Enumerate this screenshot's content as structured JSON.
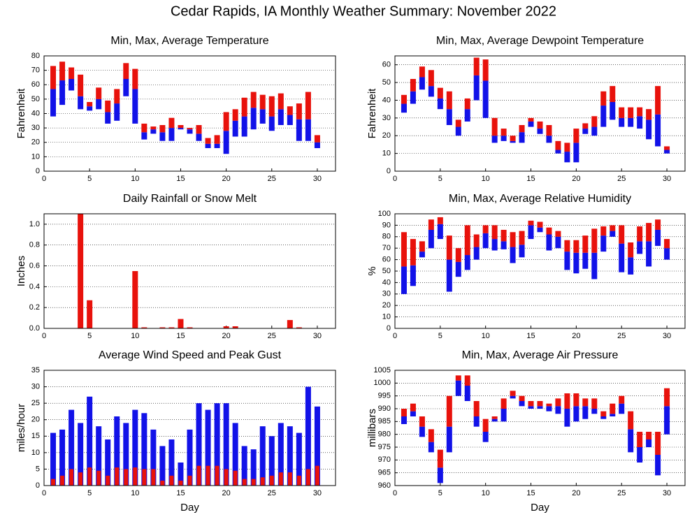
{
  "title": "Cedar Rapids, IA Monthly Weather Summary: November 2022",
  "chart_data": [
    {
      "type": "range_bar",
      "title": "Min, Max, Average Temperature",
      "ylabel": "Fahrenheit",
      "x": [
        1,
        2,
        3,
        4,
        5,
        6,
        7,
        8,
        9,
        10,
        11,
        12,
        13,
        14,
        15,
        16,
        17,
        18,
        19,
        20,
        21,
        22,
        23,
        24,
        25,
        26,
        27,
        28,
        29,
        30
      ],
      "low": [
        38,
        46,
        56,
        43,
        42,
        43,
        33,
        35,
        52,
        33,
        22,
        26,
        21,
        21,
        29,
        26,
        21,
        16,
        16,
        12,
        24,
        24,
        29,
        33,
        28,
        32,
        32,
        21,
        21,
        16
      ],
      "mid": [
        57,
        63,
        64,
        52,
        45,
        50,
        41,
        47,
        64,
        57,
        27,
        29,
        27,
        30,
        30,
        29,
        26,
        19,
        19,
        28,
        35,
        38,
        44,
        43,
        38,
        43,
        39,
        36,
        36,
        20
      ],
      "high": [
        73,
        76,
        72,
        67,
        48,
        58,
        49,
        57,
        75,
        71,
        33,
        31,
        32,
        37,
        32,
        30,
        32,
        23,
        25,
        41,
        43,
        51,
        55,
        53,
        52,
        54,
        45,
        47,
        55,
        25
      ],
      "xlim": [
        0,
        32
      ],
      "xticks": [
        0,
        5,
        10,
        15,
        20,
        25,
        30
      ],
      "ylim": [
        0,
        80
      ],
      "yticks": [
        0,
        10,
        20,
        30,
        40,
        50,
        60,
        70,
        80
      ],
      "grid": true,
      "upper_color": "#e8120c",
      "lower_color": "#1212e8"
    },
    {
      "type": "range_bar",
      "title": "Min, Max, Average Dewpoint Temperature",
      "ylabel": "Fahrenheit",
      "x": [
        1,
        2,
        3,
        4,
        5,
        6,
        7,
        8,
        9,
        10,
        11,
        12,
        13,
        14,
        15,
        16,
        17,
        18,
        19,
        20,
        21,
        22,
        23,
        24,
        25,
        26,
        27,
        28,
        29,
        30
      ],
      "low": [
        33,
        38,
        46,
        42,
        35,
        26,
        20,
        28,
        40,
        30,
        16,
        17,
        16,
        16,
        25,
        21,
        16,
        10,
        5,
        5,
        21,
        20,
        25,
        29,
        25,
        25,
        24,
        18,
        14,
        10
      ],
      "mid": [
        38,
        45,
        53,
        48,
        41,
        35,
        25,
        35,
        54,
        51,
        20,
        20,
        17,
        22,
        28,
        24,
        20,
        12,
        11,
        16,
        24,
        25,
        37,
        39,
        30,
        30,
        31,
        29,
        32,
        12
      ],
      "high": [
        43,
        52,
        59,
        57,
        47,
        45,
        29,
        41,
        64,
        63,
        30,
        24,
        20,
        26,
        30,
        28,
        26,
        17,
        16,
        24,
        27,
        31,
        45,
        48,
        36,
        36,
        36,
        35,
        48,
        14
      ],
      "xlim": [
        0,
        32
      ],
      "xticks": [
        0,
        5,
        10,
        15,
        20,
        25,
        30
      ],
      "ylim": [
        0,
        65
      ],
      "yticks": [
        0,
        10,
        20,
        30,
        40,
        50,
        60
      ],
      "grid": true,
      "upper_color": "#e8120c",
      "lower_color": "#1212e8"
    },
    {
      "type": "bar",
      "title": "Daily Rainfall or Snow Melt",
      "ylabel": "Inches",
      "x": [
        1,
        2,
        3,
        4,
        5,
        6,
        7,
        8,
        9,
        10,
        11,
        12,
        13,
        14,
        15,
        16,
        17,
        18,
        19,
        20,
        21,
        22,
        23,
        24,
        25,
        26,
        27,
        28,
        29,
        30
      ],
      "values": [
        0,
        0,
        0,
        1.1,
        0.27,
        0,
        0,
        0,
        0,
        0.55,
        0.01,
        0,
        0.01,
        0.01,
        0.09,
        0.01,
        0,
        0,
        0,
        0.02,
        0.02,
        0,
        0,
        0,
        0,
        0,
        0.08,
        0.01,
        0,
        0
      ],
      "xlim": [
        0,
        32
      ],
      "xticks": [
        0,
        5,
        10,
        15,
        20,
        25,
        30
      ],
      "ylim": [
        0,
        1.1
      ],
      "yticks": [
        {
          "value": 0,
          "label": "0.0"
        },
        0.2,
        0.4,
        0.6,
        0.8,
        {
          "value": 1,
          "label": "1.0"
        }
      ],
      "grid": true,
      "color": "#e8120c"
    },
    {
      "type": "range_bar",
      "title": "Min, Max, Average Relative Humidity",
      "ylabel": "%",
      "x": [
        1,
        2,
        3,
        4,
        5,
        6,
        7,
        8,
        9,
        10,
        11,
        12,
        13,
        14,
        15,
        16,
        17,
        18,
        19,
        20,
        21,
        22,
        23,
        24,
        25,
        26,
        27,
        28,
        29,
        30
      ],
      "low": [
        30,
        37,
        62,
        70,
        78,
        32,
        45,
        51,
        60,
        70,
        68,
        69,
        57,
        62,
        78,
        84,
        68,
        70,
        51,
        48,
        52,
        43,
        67,
        80,
        49,
        47,
        65,
        54,
        72,
        60
      ],
      "mid": [
        54,
        55,
        67,
        86,
        91,
        60,
        58,
        64,
        71,
        83,
        78,
        76,
        71,
        73,
        90,
        88,
        82,
        80,
        67,
        66,
        66,
        66,
        81,
        85,
        74,
        62,
        76,
        76,
        86,
        70
      ],
      "high": [
        84,
        78,
        76,
        95,
        97,
        81,
        70,
        90,
        82,
        90,
        90,
        86,
        84,
        85,
        94,
        93,
        88,
        85,
        77,
        77,
        81,
        87,
        89,
        90,
        90,
        75,
        89,
        92,
        95,
        78
      ],
      "xlim": [
        0,
        32
      ],
      "xticks": [
        0,
        5,
        10,
        15,
        20,
        25,
        30
      ],
      "ylim": [
        0,
        100
      ],
      "yticks": [
        0,
        10,
        20,
        30,
        40,
        50,
        60,
        70,
        80,
        90,
        100
      ],
      "grid": true,
      "upper_color": "#e8120c",
      "lower_color": "#1212e8"
    },
    {
      "type": "overlay_bar",
      "title": "Average Wind Speed and Peak Gust",
      "ylabel": "miles/hour",
      "xlabel": "Day",
      "x": [
        1,
        2,
        3,
        4,
        5,
        6,
        7,
        8,
        9,
        10,
        11,
        12,
        13,
        14,
        15,
        16,
        17,
        18,
        19,
        20,
        21,
        22,
        23,
        24,
        25,
        26,
        27,
        28,
        29,
        30
      ],
      "gust": [
        16,
        17,
        23,
        19,
        27,
        18,
        14,
        21,
        19,
        23,
        22,
        17,
        12,
        14,
        7,
        17,
        25,
        23,
        25,
        25,
        19,
        12,
        11,
        18,
        15,
        19,
        18,
        16,
        30,
        24
      ],
      "speed": [
        2,
        3,
        5,
        4,
        5.5,
        4.5,
        3,
        5.5,
        5,
        5.5,
        5,
        5,
        1.5,
        3,
        1.5,
        3,
        6,
        6,
        6,
        5,
        4.5,
        2,
        2,
        2.5,
        3,
        4,
        4,
        3,
        5,
        6
      ],
      "xlim": [
        0,
        32
      ],
      "xticks": [
        0,
        5,
        10,
        15,
        20,
        25,
        30
      ],
      "ylim": [
        0,
        35
      ],
      "yticks": [
        0,
        5,
        10,
        15,
        20,
        25,
        30,
        35
      ],
      "grid": true,
      "gust_color": "#1212e8",
      "speed_color": "#e8120c"
    },
    {
      "type": "range_bar",
      "title": "Min, Max, Average Air Pressure",
      "ylabel": "millibars",
      "xlabel": "Day",
      "x": [
        1,
        2,
        3,
        4,
        5,
        6,
        7,
        8,
        9,
        10,
        11,
        12,
        13,
        14,
        15,
        16,
        17,
        18,
        19,
        20,
        21,
        22,
        23,
        24,
        25,
        26,
        27,
        28,
        29,
        30
      ],
      "low": [
        984,
        987,
        979,
        973,
        961,
        973,
        995,
        993,
        983,
        977,
        985,
        985,
        994,
        991,
        990,
        990,
        989,
        988,
        983,
        985,
        986,
        988,
        986,
        987,
        988,
        973,
        969,
        975,
        964,
        980
      ],
      "mid": [
        987,
        989,
        983,
        977,
        967,
        983,
        1001,
        999,
        987,
        981,
        986,
        990,
        995,
        993,
        991,
        991,
        991,
        991,
        990,
        991,
        991,
        990,
        987,
        988,
        992,
        982,
        975,
        978,
        972,
        991
      ],
      "high": [
        990,
        992,
        987,
        982,
        974,
        995,
        1003,
        1003,
        993,
        986,
        987,
        994,
        997,
        995,
        993,
        993,
        992,
        994,
        996,
        996,
        994,
        994,
        989,
        992,
        995,
        989,
        981,
        981,
        981,
        998
      ],
      "xlim": [
        0,
        32
      ],
      "xticks": [
        0,
        5,
        10,
        15,
        20,
        25,
        30
      ],
      "ylim": [
        960,
        1005
      ],
      "yticks": [
        960,
        965,
        970,
        975,
        980,
        985,
        990,
        995,
        1000,
        1005
      ],
      "grid": true,
      "upper_color": "#e8120c",
      "lower_color": "#1212e8"
    }
  ]
}
